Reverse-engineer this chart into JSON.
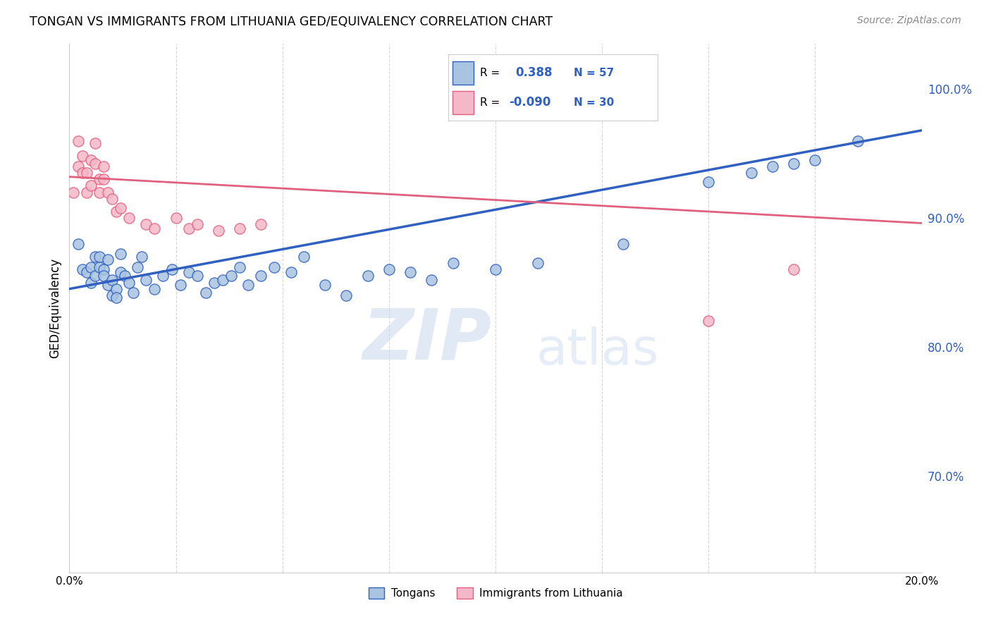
{
  "title": "TONGAN VS IMMIGRANTS FROM LITHUANIA GED/EQUIVALENCY CORRELATION CHART",
  "source": "Source: ZipAtlas.com",
  "ylabel": "GED/Equivalency",
  "ytick_labels": [
    "70.0%",
    "80.0%",
    "90.0%",
    "100.0%"
  ],
  "ytick_values": [
    0.7,
    0.8,
    0.9,
    1.0
  ],
  "xlim": [
    0.0,
    0.2
  ],
  "ylim": [
    0.625,
    1.035
  ],
  "blue_R": 0.388,
  "blue_N": 57,
  "pink_R": -0.09,
  "pink_N": 30,
  "blue_color": "#a8c4e0",
  "pink_color": "#f4b8c8",
  "blue_line_color": "#3060c0",
  "pink_line_color": "#e06080",
  "blue_label": "Tongans",
  "pink_label": "Immigrants from Lithuania",
  "watermark_zip": "ZIP",
  "watermark_atlas": "atlas",
  "blue_x": [
    0.002,
    0.003,
    0.004,
    0.005,
    0.005,
    0.006,
    0.006,
    0.007,
    0.007,
    0.008,
    0.008,
    0.009,
    0.009,
    0.01,
    0.01,
    0.011,
    0.011,
    0.012,
    0.012,
    0.013,
    0.014,
    0.015,
    0.016,
    0.017,
    0.018,
    0.02,
    0.022,
    0.024,
    0.026,
    0.028,
    0.03,
    0.032,
    0.034,
    0.036,
    0.038,
    0.04,
    0.042,
    0.045,
    0.048,
    0.052,
    0.055,
    0.06,
    0.065,
    0.07,
    0.075,
    0.08,
    0.085,
    0.09,
    0.1,
    0.11,
    0.13,
    0.15,
    0.16,
    0.165,
    0.17,
    0.175,
    0.185
  ],
  "blue_y": [
    0.88,
    0.86,
    0.858,
    0.862,
    0.85,
    0.87,
    0.855,
    0.862,
    0.87,
    0.86,
    0.855,
    0.868,
    0.848,
    0.84,
    0.852,
    0.845,
    0.838,
    0.872,
    0.858,
    0.855,
    0.85,
    0.842,
    0.862,
    0.87,
    0.852,
    0.845,
    0.855,
    0.86,
    0.848,
    0.858,
    0.855,
    0.842,
    0.85,
    0.852,
    0.855,
    0.862,
    0.848,
    0.855,
    0.862,
    0.858,
    0.87,
    0.848,
    0.84,
    0.855,
    0.86,
    0.858,
    0.852,
    0.865,
    0.86,
    0.865,
    0.88,
    0.928,
    0.935,
    0.94,
    0.942,
    0.945,
    0.96
  ],
  "pink_x": [
    0.001,
    0.002,
    0.002,
    0.003,
    0.003,
    0.004,
    0.004,
    0.005,
    0.005,
    0.006,
    0.006,
    0.007,
    0.007,
    0.008,
    0.008,
    0.009,
    0.01,
    0.011,
    0.012,
    0.014,
    0.018,
    0.02,
    0.025,
    0.028,
    0.03,
    0.035,
    0.04,
    0.045,
    0.15,
    0.17
  ],
  "pink_y": [
    0.92,
    0.94,
    0.96,
    0.935,
    0.948,
    0.92,
    0.935,
    0.945,
    0.925,
    0.942,
    0.958,
    0.93,
    0.92,
    0.94,
    0.93,
    0.92,
    0.915,
    0.905,
    0.908,
    0.9,
    0.895,
    0.892,
    0.9,
    0.892,
    0.895,
    0.89,
    0.892,
    0.895,
    0.82,
    0.86
  ],
  "blue_trendline_x0": 0.0,
  "blue_trendline_y0": 0.845,
  "blue_trendline_x1": 0.2,
  "blue_trendline_y1": 0.968,
  "pink_trendline_x0": 0.0,
  "pink_trendline_y0": 0.932,
  "pink_trendline_x1": 0.2,
  "pink_trendline_y1": 0.896
}
